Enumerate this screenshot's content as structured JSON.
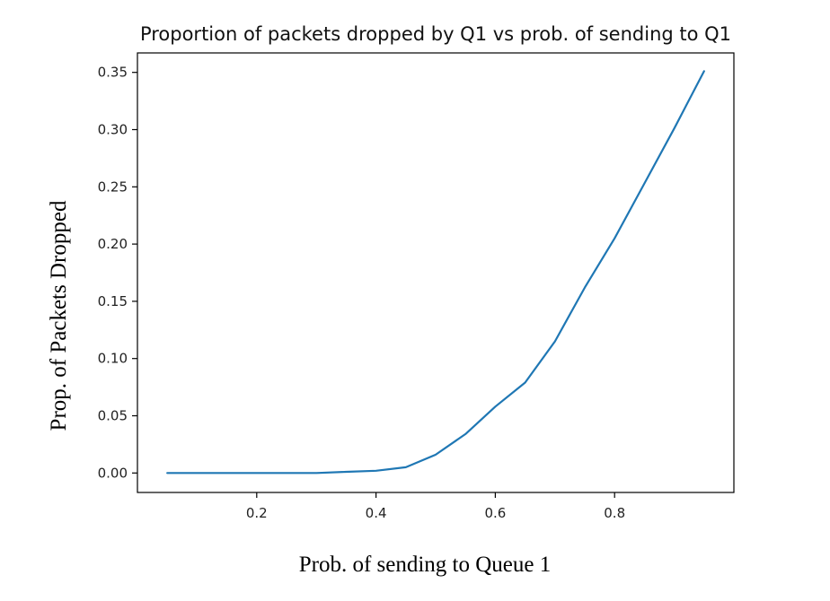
{
  "chart_data": {
    "type": "line",
    "title": "Proportion of packets dropped by Q1 vs prob. of sending to Q1",
    "xlabel": "Prob. of sending to Queue 1",
    "ylabel": "Prop. of Packets Dropped",
    "xlim": [
      0.0,
      1.0
    ],
    "ylim": [
      -0.017,
      0.367
    ],
    "xticks": [
      0.2,
      0.4,
      0.6,
      0.8
    ],
    "xtick_labels": [
      "0.2",
      "0.4",
      "0.6",
      "0.8"
    ],
    "yticks": [
      0.0,
      0.05,
      0.1,
      0.15,
      0.2,
      0.25,
      0.3,
      0.35
    ],
    "ytick_labels": [
      "0.00",
      "0.05",
      "0.10",
      "0.15",
      "0.20",
      "0.25",
      "0.30",
      "0.35"
    ],
    "grid": false,
    "series": [
      {
        "color": "#1f77b4",
        "x": [
          0.05,
          0.1,
          0.15,
          0.2,
          0.25,
          0.3,
          0.35,
          0.4,
          0.45,
          0.5,
          0.55,
          0.6,
          0.65,
          0.7,
          0.75,
          0.8,
          0.85,
          0.9,
          0.95
        ],
        "y": [
          0.0,
          0.0,
          0.0,
          0.0,
          0.0,
          0.0,
          0.001,
          0.002,
          0.005,
          0.016,
          0.034,
          0.058,
          0.079,
          0.115,
          0.162,
          0.205,
          0.253,
          0.301,
          0.351
        ]
      }
    ]
  }
}
